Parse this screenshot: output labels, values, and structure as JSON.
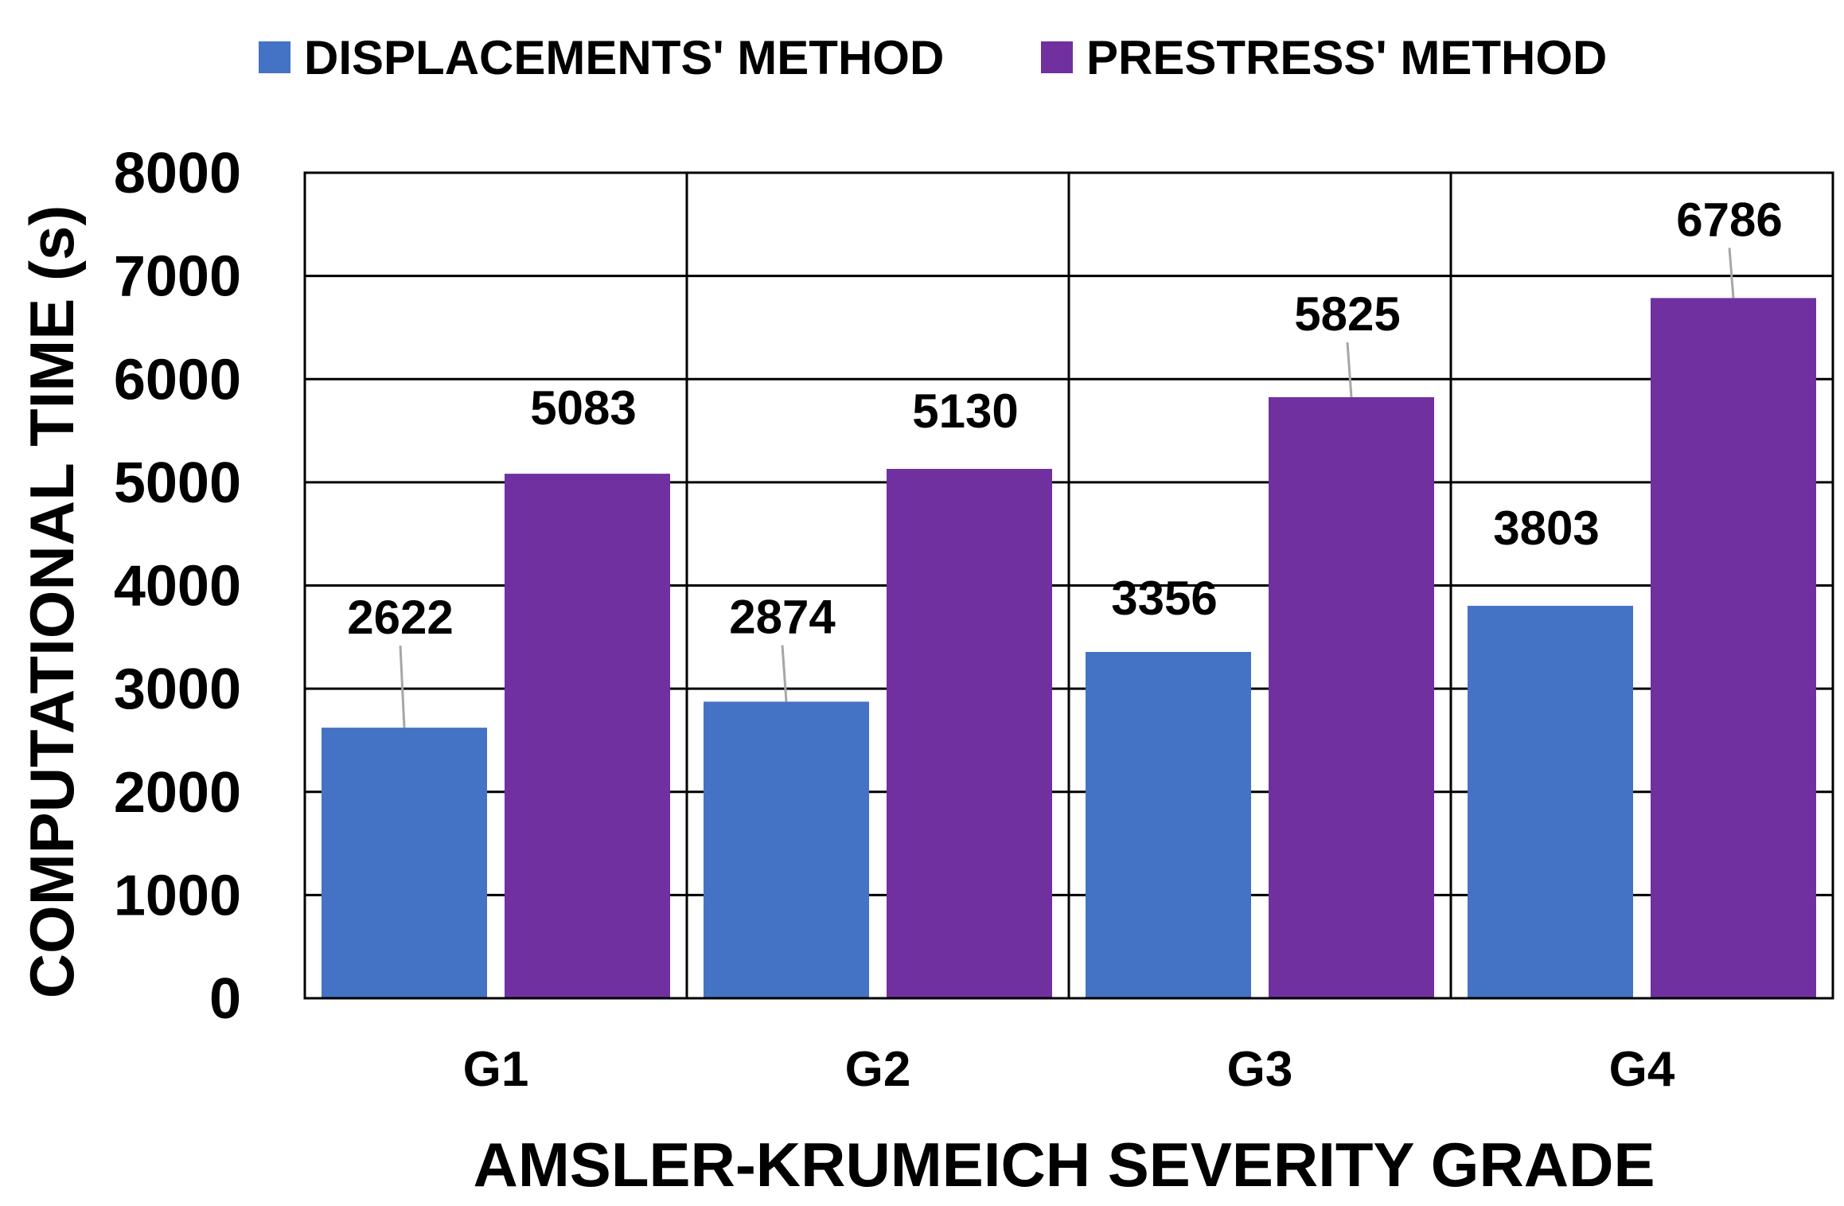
{
  "chart_data": {
    "type": "bar",
    "title": "",
    "xlabel": "AMSLER-KRUMEICH SEVERITY GRADE",
    "ylabel": "COMPUTATIONAL TIME (s)",
    "categories": [
      "G1",
      "G2",
      "G3",
      "G4"
    ],
    "series": [
      {
        "name": "DISPLACEMENTS' METHOD",
        "color": "#4472C4",
        "values": [
          2622,
          2874,
          3356,
          3803
        ]
      },
      {
        "name": "PRESTRESS' METHOD",
        "color": "#7030A0",
        "values": [
          5083,
          5130,
          5825,
          6786
        ]
      }
    ],
    "ylim": [
      0,
      8000
    ],
    "yticks": [
      0,
      1000,
      2000,
      3000,
      4000,
      5000,
      6000,
      7000,
      8000
    ],
    "grid": true,
    "legend": "top",
    "data_labels": true
  }
}
